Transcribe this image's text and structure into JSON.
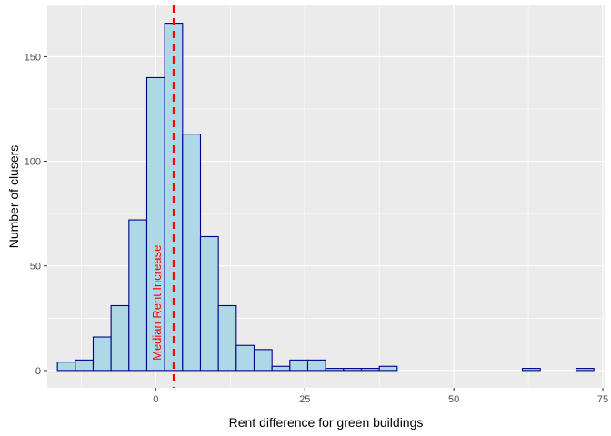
{
  "chart_data": {
    "type": "bar",
    "subtype": "histogram",
    "xlabel": "Rent difference for green buildings",
    "ylabel": "Number of clusers",
    "xlim": [
      -18.2,
      75.3
    ],
    "ylim": [
      -8.3,
      174.5
    ],
    "x_ticks": [
      0,
      25,
      50,
      75
    ],
    "y_ticks": [
      0,
      50,
      100,
      150
    ],
    "bin_width": 3,
    "bins": [
      {
        "x0": -16.5,
        "x1": -13.5,
        "count": 4
      },
      {
        "x0": -13.5,
        "x1": -10.5,
        "count": 5
      },
      {
        "x0": -10.5,
        "x1": -7.5,
        "count": 16
      },
      {
        "x0": -7.5,
        "x1": -4.5,
        "count": 31
      },
      {
        "x0": -4.5,
        "x1": -1.5,
        "count": 72
      },
      {
        "x0": -1.5,
        "x1": 1.5,
        "count": 140
      },
      {
        "x0": 1.5,
        "x1": 4.5,
        "count": 166
      },
      {
        "x0": 4.5,
        "x1": 7.5,
        "count": 113
      },
      {
        "x0": 7.5,
        "x1": 10.5,
        "count": 64
      },
      {
        "x0": 10.5,
        "x1": 13.5,
        "count": 31
      },
      {
        "x0": 13.5,
        "x1": 16.5,
        "count": 12
      },
      {
        "x0": 16.5,
        "x1": 19.5,
        "count": 10
      },
      {
        "x0": 19.5,
        "x1": 22.5,
        "count": 2
      },
      {
        "x0": 22.5,
        "x1": 25.5,
        "count": 5
      },
      {
        "x0": 25.5,
        "x1": 28.5,
        "count": 5
      },
      {
        "x0": 28.5,
        "x1": 31.5,
        "count": 1
      },
      {
        "x0": 31.5,
        "x1": 34.5,
        "count": 1
      },
      {
        "x0": 34.5,
        "x1": 37.5,
        "count": 1
      },
      {
        "x0": 37.5,
        "x1": 40.5,
        "count": 2
      },
      {
        "x0": 40.5,
        "x1": 43.5,
        "count": 0
      },
      {
        "x0": 43.5,
        "x1": 46.5,
        "count": 0
      },
      {
        "x0": 46.5,
        "x1": 49.5,
        "count": 0
      },
      {
        "x0": 49.5,
        "x1": 52.5,
        "count": 0
      },
      {
        "x0": 52.5,
        "x1": 55.5,
        "count": 0
      },
      {
        "x0": 55.5,
        "x1": 58.5,
        "count": 0
      },
      {
        "x0": 58.5,
        "x1": 61.5,
        "count": 0
      },
      {
        "x0": 61.5,
        "x1": 64.5,
        "count": 1
      },
      {
        "x0": 64.5,
        "x1": 67.5,
        "count": 0
      },
      {
        "x0": 67.5,
        "x1": 70.5,
        "count": 0
      },
      {
        "x0": 70.5,
        "x1": 73.5,
        "count": 1
      }
    ],
    "reference_line": {
      "x": 3,
      "label": "Median Rent Increase",
      "style": "dashed"
    },
    "grid": true,
    "colors": {
      "bar_fill": "#add8e6",
      "bar_stroke": "#00008b",
      "panel_background": "#ebebeb",
      "grid_major": "#ffffff",
      "reference_line": "#ff0000",
      "tick_label": "#4d4d4d",
      "tick_mark": "#333333"
    }
  }
}
